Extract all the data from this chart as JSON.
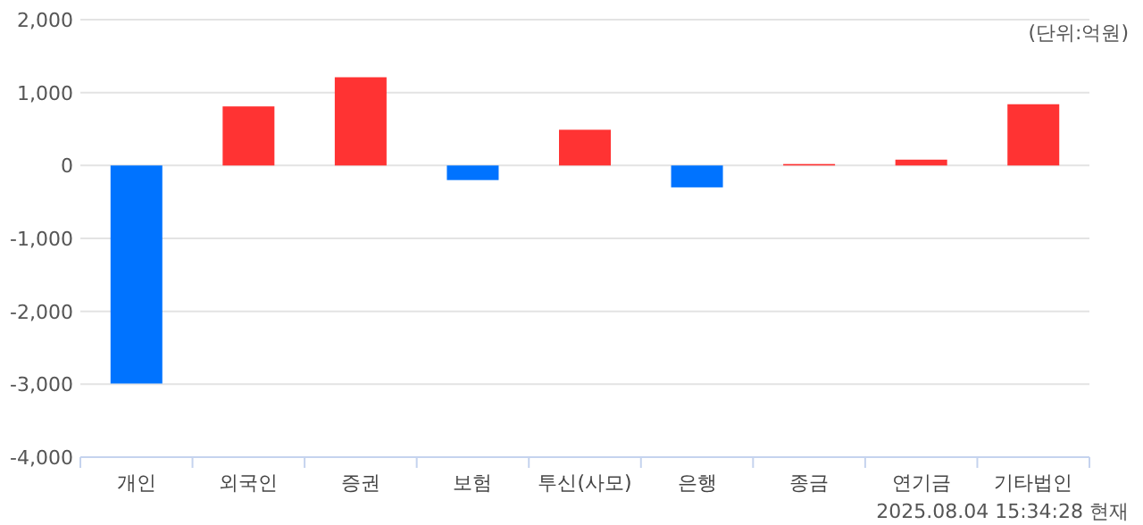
{
  "chart_data": {
    "type": "bar",
    "categories": [
      "개인",
      "외국인",
      "증권",
      "보험",
      "투신(사모)",
      "은행",
      "종금",
      "연기금",
      "기타법인"
    ],
    "values": [
      -2990,
      810,
      1210,
      -200,
      490,
      -300,
      20,
      80,
      840
    ],
    "colors": [
      "#0073ff",
      "#ff3333",
      "#ff3333",
      "#0073ff",
      "#ff3333",
      "#0073ff",
      "#ff3333",
      "#ff3333",
      "#ff3333"
    ],
    "ylim": [
      -4000,
      2000
    ],
    "yticks": [
      {
        "value": -4000,
        "label": "-4,000"
      },
      {
        "value": -3000,
        "label": "-3,000"
      },
      {
        "value": -2000,
        "label": "-2,000"
      },
      {
        "value": -1000,
        "label": "-1,000"
      },
      0,
      {
        "value": 1000,
        "label": "1,000"
      },
      {
        "value": 2000,
        "label": "2,000"
      }
    ],
    "grid": "y",
    "annotations": [
      "(단위:억원)",
      "2025.08.04 15:34:28 현재"
    ]
  }
}
